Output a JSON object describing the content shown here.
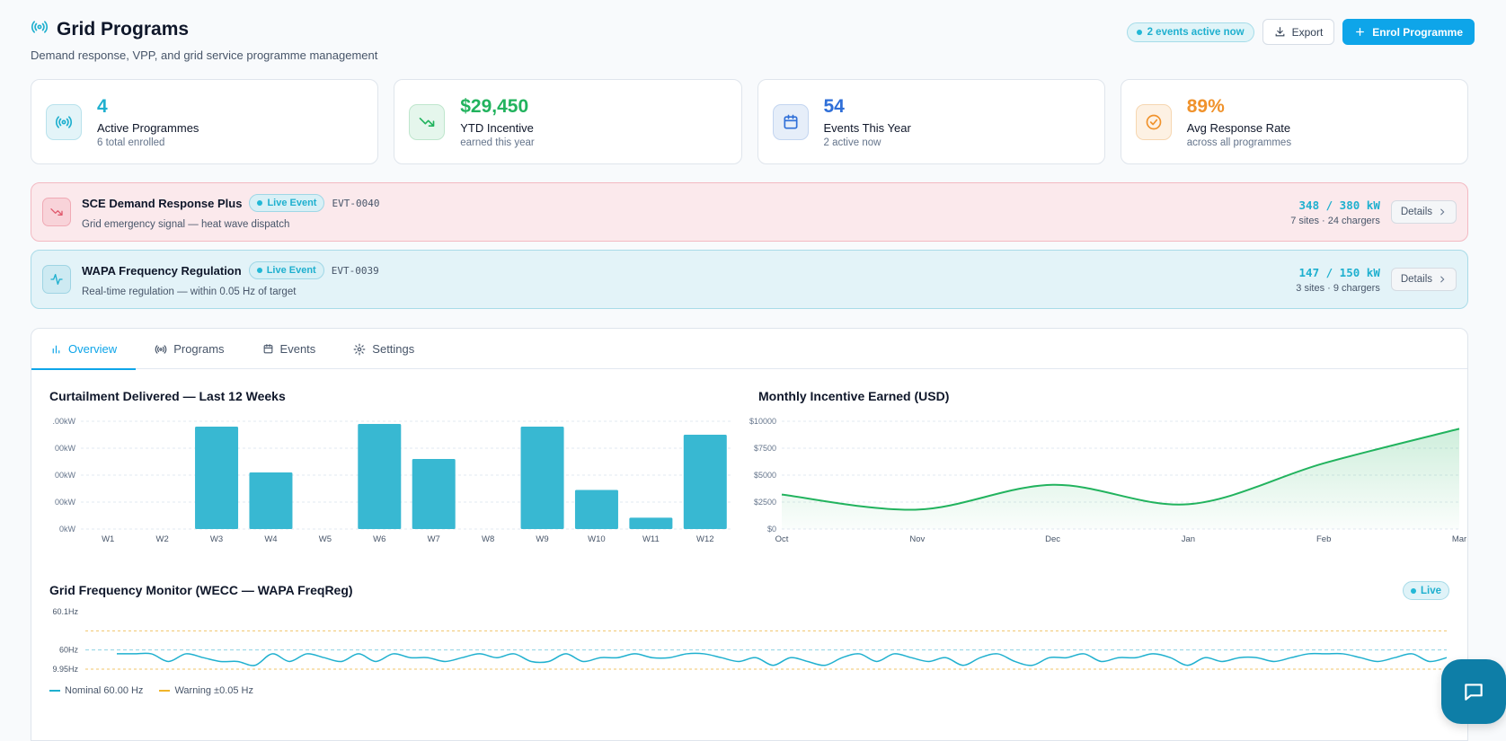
{
  "header": {
    "title": "Grid Programs",
    "subtitle": "Demand response, VPP, and grid service programme management",
    "live_pill": "2 events active now",
    "export_label": "Export",
    "enrol_label": "Enrol Programme"
  },
  "kpis": [
    {
      "value": "4",
      "label": "Active Programmes",
      "sub": "6 total enrolled",
      "color": "#1fb0cf"
    },
    {
      "value": "$29,450",
      "label": "YTD Incentive",
      "sub": "earned this year",
      "color": "#22b35e"
    },
    {
      "value": "54",
      "label": "Events This Year",
      "sub": "2 active now",
      "color": "#2f6fd8"
    },
    {
      "value": "89%",
      "label": "Avg Response Rate",
      "sub": "across all programmes",
      "color": "#f0922b"
    }
  ],
  "events": [
    {
      "name": "SCE Demand Response Plus",
      "badge": "Live Event",
      "id": "EVT-0040",
      "desc": "Grid emergency signal — heat wave dispatch",
      "kw": "348 / 380 kW",
      "sites": "7 sites · 24 chargers",
      "details": "Details"
    },
    {
      "name": "WAPA Frequency Regulation",
      "badge": "Live Event",
      "id": "EVT-0039",
      "desc": "Real-time regulation — within 0.05 Hz of target",
      "kw": "147 / 150 kW",
      "sites": "3 sites · 9 chargers",
      "details": "Details"
    }
  ],
  "tabs": [
    {
      "label": "Overview"
    },
    {
      "label": "Programs"
    },
    {
      "label": "Events"
    },
    {
      "label": "Settings"
    }
  ],
  "charts": {
    "curtailment_title": "Curtailment Delivered — Last 12 Weeks",
    "incentive_title": "Monthly Incentive Earned (USD)",
    "frequency_title": "Grid Frequency Monitor (WECC — WAPA FreqReg)",
    "live_label": "Live",
    "legend_nominal": "Nominal 60.00 Hz",
    "legend_warning": "Warning ±0.05 Hz"
  },
  "chart_data": [
    {
      "type": "bar",
      "title": "Curtailment Delivered — Last 12 Weeks",
      "categories": [
        "W1",
        "W2",
        "W3",
        "W4",
        "W5",
        "W6",
        "W7",
        "W8",
        "W9",
        "W10",
        "W11",
        "W12"
      ],
      "values": [
        0,
        0,
        380,
        210,
        0,
        390,
        260,
        0,
        380,
        145,
        42,
        350
      ],
      "ytick_labels": [
        ".00kW",
        "00kW",
        "00kW",
        "00kW",
        "0kW"
      ],
      "ylim": [
        0,
        400
      ],
      "color": "#38b8d2"
    },
    {
      "type": "area",
      "title": "Monthly Incentive Earned (USD)",
      "categories": [
        "Oct",
        "Nov",
        "Dec",
        "Jan",
        "Feb",
        "Mar"
      ],
      "values": [
        3200,
        1800,
        4100,
        2300,
        6100,
        9300
      ],
      "ytick_labels": [
        "$0",
        "$2500",
        "$5000",
        "$7500",
        "$10000"
      ],
      "ylim": [
        0,
        10000
      ],
      "color": "#22b35e"
    },
    {
      "type": "line",
      "title": "Grid Frequency Monitor (WECC — WAPA FreqReg)",
      "ytick_labels": [
        "60.1Hz",
        "60Hz",
        "9.95Hz"
      ],
      "ylim": [
        59.95,
        60.1
      ],
      "nominal": 60.0,
      "warning": [
        59.95,
        60.05
      ],
      "values": [
        59.99,
        59.99,
        59.99,
        59.97,
        59.99,
        59.98,
        59.97,
        59.97,
        59.96,
        59.99,
        59.97,
        59.99,
        59.98,
        59.97,
        59.99,
        59.97,
        59.99,
        59.98,
        59.98,
        59.97,
        59.98,
        59.99,
        59.98,
        59.99,
        59.97,
        59.97,
        59.99,
        59.97,
        59.98,
        59.98,
        59.99,
        59.98,
        59.98,
        59.99,
        59.99,
        59.98,
        59.97,
        59.98,
        59.96,
        59.98,
        59.97,
        59.96,
        59.98,
        59.99,
        59.97,
        59.99,
        59.98,
        59.97,
        59.98,
        59.96,
        59.98,
        59.99,
        59.97,
        59.96,
        59.98,
        59.98,
        59.99,
        59.97,
        59.98,
        59.98,
        59.99,
        59.98,
        59.96,
        59.98,
        59.97,
        59.98,
        59.98,
        59.97,
        59.98,
        59.99,
        59.99,
        59.99,
        59.98,
        59.97,
        59.98,
        59.99,
        59.97,
        59.98
      ],
      "color": "#1fb0cf"
    }
  ]
}
